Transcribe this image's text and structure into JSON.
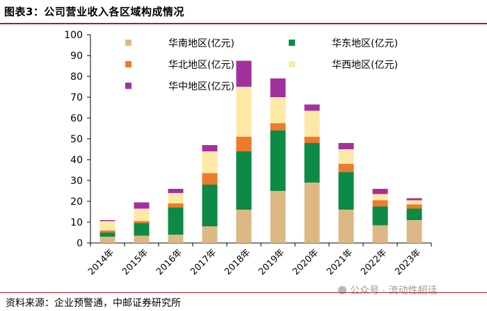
{
  "title": "图表3：公司营业收入各区域构成情况",
  "source": "资料来源：企业预警通，中邮证券研究所",
  "watermark": "公众号 · 流动性超话",
  "chart_data": {
    "type": "bar",
    "stacked": true,
    "categories": [
      "2014年",
      "2015年",
      "2016年",
      "2017年",
      "2018年",
      "2019年",
      "2020年",
      "2021年",
      "2022年",
      "2023年"
    ],
    "series": [
      {
        "name": "华南地区(亿元)",
        "color": "#dcb984",
        "values": [
          3,
          3.5,
          4,
          8,
          16,
          25,
          29,
          16,
          8.5,
          11
        ]
      },
      {
        "name": "华东地区(亿元)",
        "color": "#0c8a46",
        "values": [
          2,
          6,
          13,
          20,
          28,
          29,
          19,
          18,
          9,
          5.5
        ]
      },
      {
        "name": "华北地区(亿元)",
        "color": "#ed7b2d",
        "values": [
          1,
          1,
          2,
          5.5,
          7,
          3.5,
          3,
          4,
          3,
          2
        ]
      },
      {
        "name": "华西地区(亿元)",
        "color": "#fde9a6",
        "values": [
          4.5,
          6,
          5,
          10.5,
          24,
          12.5,
          12.5,
          7,
          3,
          2
        ]
      },
      {
        "name": "华中地区(亿元)",
        "color": "#a3319d",
        "values": [
          0.5,
          3,
          2,
          3,
          12.5,
          9,
          3,
          3,
          2.5,
          1
        ]
      }
    ],
    "yticks": [
      0,
      10,
      20,
      30,
      40,
      50,
      60,
      70,
      80,
      90,
      100
    ],
    "ylim": [
      0,
      100
    ],
    "legend_position": "top",
    "grid": false
  }
}
